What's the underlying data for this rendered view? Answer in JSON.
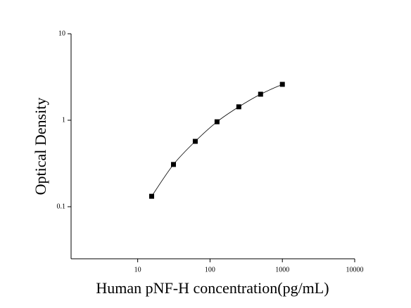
{
  "chart_data": {
    "type": "scatter",
    "xlabel": "Human pNF-H concentration(pg/mL)",
    "ylabel": "Optical Density",
    "x": [
      15.6,
      31.25,
      62.5,
      125,
      250,
      500,
      1000
    ],
    "values": [
      0.132,
      0.308,
      0.57,
      0.96,
      1.43,
      2.0,
      2.6
    ],
    "color": "#000000",
    "fit_line": true,
    "xscale": "log",
    "yscale": "log",
    "xlim": [
      1.2,
      10000
    ],
    "ylim": [
      0.025,
      10
    ],
    "xticks": [
      10,
      100,
      1000,
      10000
    ],
    "yticks": [
      0.1,
      1,
      10
    ]
  }
}
